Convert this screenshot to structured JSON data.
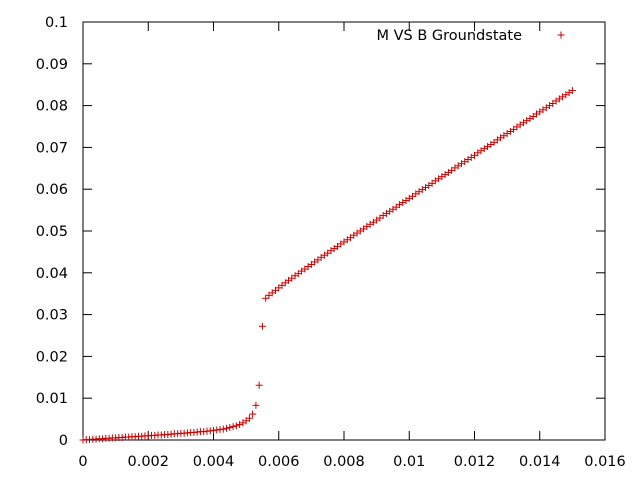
{
  "chart_data": {
    "type": "scatter",
    "title": "",
    "xlabel": "",
    "ylabel": "",
    "xlim": [
      0,
      0.016
    ],
    "ylim": [
      0,
      0.1
    ],
    "x_ticks": [
      "0",
      "0.002",
      "0.004",
      "0.006",
      "0.008",
      "0.01",
      "0.012",
      "0.014",
      "0.016"
    ],
    "y_ticks": [
      "0",
      "0.01",
      "0.02",
      "0.03",
      "0.04",
      "0.05",
      "0.06",
      "0.07",
      "0.08",
      "0.09",
      "0.1"
    ],
    "legend_position": "top-right",
    "grid": false,
    "marker": "+",
    "series": [
      {
        "name": "M VS B Groundstate",
        "color": "#cc0000",
        "points": [
          [
            0.0,
            0.0
          ],
          [
            0.0001,
            0.0001
          ],
          [
            0.0002,
            0.0001
          ],
          [
            0.0003,
            0.0002
          ],
          [
            0.0004,
            0.0002
          ],
          [
            0.0005,
            0.0003
          ],
          [
            0.0006,
            0.0003
          ],
          [
            0.0007,
            0.0004
          ],
          [
            0.0008,
            0.0004
          ],
          [
            0.0009,
            0.0005
          ],
          [
            0.001,
            0.0005
          ],
          [
            0.0011,
            0.0006
          ],
          [
            0.0012,
            0.0006
          ],
          [
            0.0013,
            0.0007
          ],
          [
            0.0014,
            0.0007
          ],
          [
            0.0015,
            0.0008
          ],
          [
            0.0016,
            0.0008
          ],
          [
            0.0017,
            0.0009
          ],
          [
            0.0018,
            0.0009
          ],
          [
            0.0019,
            0.001
          ],
          [
            0.002,
            0.001
          ],
          [
            0.0021,
            0.0011
          ],
          [
            0.0022,
            0.0011
          ],
          [
            0.0023,
            0.0012
          ],
          [
            0.0024,
            0.0012
          ],
          [
            0.0025,
            0.0013
          ],
          [
            0.0026,
            0.0013
          ],
          [
            0.0027,
            0.0014
          ],
          [
            0.0028,
            0.0015
          ],
          [
            0.0029,
            0.0015
          ],
          [
            0.003,
            0.0016
          ],
          [
            0.0031,
            0.0016
          ],
          [
            0.0032,
            0.0017
          ],
          [
            0.0033,
            0.0018
          ],
          [
            0.0034,
            0.0018
          ],
          [
            0.0035,
            0.0019
          ],
          [
            0.0036,
            0.002
          ],
          [
            0.0037,
            0.002
          ],
          [
            0.0038,
            0.0021
          ],
          [
            0.0039,
            0.0022
          ],
          [
            0.004,
            0.0023
          ],
          [
            0.0041,
            0.0024
          ],
          [
            0.0042,
            0.0025
          ],
          [
            0.0043,
            0.0026
          ],
          [
            0.0044,
            0.0028
          ],
          [
            0.0045,
            0.003
          ],
          [
            0.0046,
            0.0032
          ],
          [
            0.0047,
            0.0034
          ],
          [
            0.0048,
            0.0037
          ],
          [
            0.0049,
            0.0041
          ],
          [
            0.005,
            0.0046
          ],
          [
            0.0051,
            0.0052
          ],
          [
            0.0052,
            0.0062
          ],
          [
            0.0053,
            0.0083
          ],
          [
            0.0054,
            0.0131
          ],
          [
            0.0055,
            0.0272
          ],
          [
            0.0056,
            0.0339
          ],
          [
            0.0057,
            0.0346
          ],
          [
            0.0058,
            0.0352
          ],
          [
            0.0059,
            0.0358
          ],
          [
            0.006,
            0.0364
          ],
          [
            0.0061,
            0.037
          ],
          [
            0.0062,
            0.0376
          ],
          [
            0.0063,
            0.0382
          ],
          [
            0.0064,
            0.0387
          ],
          [
            0.0065,
            0.0393
          ],
          [
            0.0066,
            0.0398
          ],
          [
            0.0067,
            0.0404
          ],
          [
            0.0068,
            0.0409
          ],
          [
            0.0069,
            0.0415
          ],
          [
            0.007,
            0.042
          ],
          [
            0.0071,
            0.0426
          ],
          [
            0.0072,
            0.0431
          ],
          [
            0.0073,
            0.0437
          ],
          [
            0.0074,
            0.0442
          ],
          [
            0.0075,
            0.0447
          ],
          [
            0.0076,
            0.0453
          ],
          [
            0.0077,
            0.0458
          ],
          [
            0.0078,
            0.0463
          ],
          [
            0.0079,
            0.0469
          ],
          [
            0.008,
            0.0474
          ],
          [
            0.0081,
            0.0479
          ],
          [
            0.0082,
            0.0484
          ],
          [
            0.0083,
            0.049
          ],
          [
            0.0084,
            0.0495
          ],
          [
            0.0085,
            0.05
          ],
          [
            0.0086,
            0.0505
          ],
          [
            0.0087,
            0.0511
          ],
          [
            0.0088,
            0.0516
          ],
          [
            0.0089,
            0.0521
          ],
          [
            0.009,
            0.0526
          ],
          [
            0.0091,
            0.0531
          ],
          [
            0.0092,
            0.0537
          ],
          [
            0.0093,
            0.0542
          ],
          [
            0.0094,
            0.0547
          ],
          [
            0.0095,
            0.0552
          ],
          [
            0.0096,
            0.0557
          ],
          [
            0.0097,
            0.0563
          ],
          [
            0.0098,
            0.0568
          ],
          [
            0.0099,
            0.0573
          ],
          [
            0.01,
            0.0578
          ],
          [
            0.0101,
            0.0583
          ],
          [
            0.0102,
            0.0589
          ],
          [
            0.0103,
            0.0594
          ],
          [
            0.0104,
            0.0599
          ],
          [
            0.0105,
            0.0604
          ],
          [
            0.0106,
            0.0609
          ],
          [
            0.0107,
            0.0614
          ],
          [
            0.0108,
            0.062
          ],
          [
            0.0109,
            0.0625
          ],
          [
            0.011,
            0.063
          ],
          [
            0.0111,
            0.0635
          ],
          [
            0.0112,
            0.064
          ],
          [
            0.0113,
            0.0645
          ],
          [
            0.0114,
            0.0651
          ],
          [
            0.0115,
            0.0656
          ],
          [
            0.0116,
            0.0661
          ],
          [
            0.0117,
            0.0666
          ],
          [
            0.0118,
            0.0671
          ],
          [
            0.0119,
            0.0676
          ],
          [
            0.012,
            0.0681
          ],
          [
            0.0121,
            0.0687
          ],
          [
            0.0122,
            0.0692
          ],
          [
            0.0123,
            0.0697
          ],
          [
            0.0124,
            0.0702
          ],
          [
            0.0125,
            0.0707
          ],
          [
            0.0126,
            0.0712
          ],
          [
            0.0127,
            0.0718
          ],
          [
            0.0128,
            0.0723
          ],
          [
            0.0129,
            0.0728
          ],
          [
            0.013,
            0.0733
          ],
          [
            0.0131,
            0.0738
          ],
          [
            0.0132,
            0.0743
          ],
          [
            0.0133,
            0.0749
          ],
          [
            0.0134,
            0.0754
          ],
          [
            0.0135,
            0.0759
          ],
          [
            0.0136,
            0.0764
          ],
          [
            0.0137,
            0.0769
          ],
          [
            0.0138,
            0.0774
          ],
          [
            0.0139,
            0.078
          ],
          [
            0.014,
            0.0785
          ],
          [
            0.0141,
            0.079
          ],
          [
            0.0142,
            0.0795
          ],
          [
            0.0143,
            0.08
          ],
          [
            0.0144,
            0.0805
          ],
          [
            0.0145,
            0.0811
          ],
          [
            0.0146,
            0.0816
          ],
          [
            0.0147,
            0.0821
          ],
          [
            0.0148,
            0.0826
          ],
          [
            0.0149,
            0.0831
          ],
          [
            0.015,
            0.0836
          ]
        ]
      }
    ]
  }
}
